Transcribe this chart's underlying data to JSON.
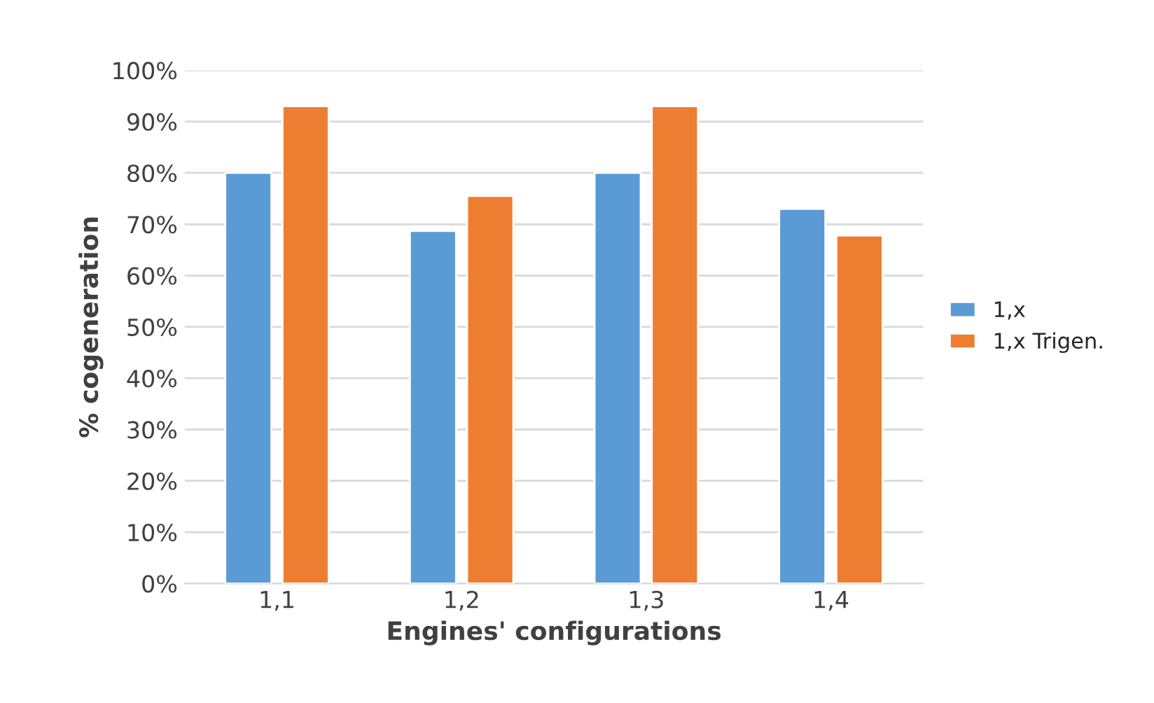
{
  "chart_data": {
    "type": "bar",
    "xlabel": "Engines' configurations",
    "ylabel": "% cogeneration",
    "categories": [
      "1,1",
      "1,2",
      "1,3",
      "1,4"
    ],
    "series": [
      {
        "name": "1,x",
        "color": "#5b9bd5",
        "values": [
          80,
          68.7,
          80,
          73
        ]
      },
      {
        "name": "1,x Trigen.",
        "color": "#ed7d31",
        "values": [
          93,
          75.5,
          93,
          67.8
        ]
      }
    ],
    "ylim": [
      0,
      100
    ],
    "yticks": [
      {
        "value": 0,
        "label": "0%"
      },
      {
        "value": 10,
        "label": "10%"
      },
      {
        "value": 20,
        "label": "20%"
      },
      {
        "value": 30,
        "label": "30%"
      },
      {
        "value": 40,
        "label": "40%"
      },
      {
        "value": 50,
        "label": "50%"
      },
      {
        "value": 60,
        "label": "60%"
      },
      {
        "value": 70,
        "label": "70%"
      },
      {
        "value": 80,
        "label": "80%"
      },
      {
        "value": 90,
        "label": "90%"
      },
      {
        "value": 100,
        "label": "100%"
      }
    ],
    "grid": "y",
    "legend": "right"
  }
}
